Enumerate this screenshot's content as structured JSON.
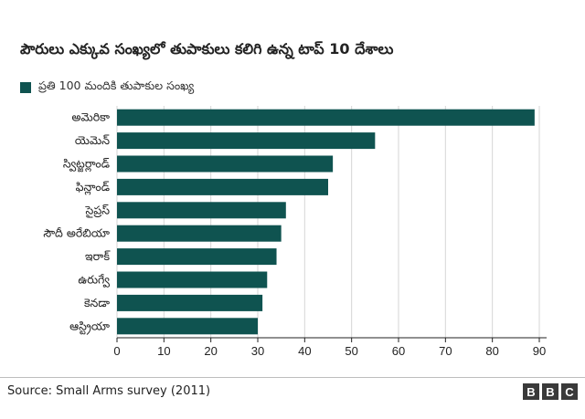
{
  "colors": {
    "bar": "#0f5350",
    "axis": "#222222",
    "grid": "#d6d6d6",
    "text": "#222222"
  },
  "chart_data": {
    "type": "bar",
    "orientation": "horizontal",
    "title": "పౌరులు ఎక్కువ సంఖ్యలో తుపాకులు కలిగి ఉన్న టాప్ 10 దేశాలు",
    "legend": [
      "ప్రతి 100 మందికి తుపాకుల సంఖ్య"
    ],
    "categories": [
      "అమెరికా",
      "యెమెన్",
      "స్విట్జర్లాండ్",
      "ఫిన్లాండ్",
      "సైప్రస్",
      "సౌదీ అరేబియా",
      "ఇరాక్",
      "ఉరుగ్వే",
      "కెనడా",
      "ఆస్ట్రియా"
    ],
    "values": [
      89,
      55,
      46,
      45,
      36,
      35,
      34,
      32,
      31,
      30
    ],
    "xticks": [
      "0",
      "10",
      "20",
      "30",
      "40",
      "50",
      "60",
      "70",
      "80",
      "90"
    ],
    "xlim": [
      0,
      90
    ],
    "grid": true
  },
  "source": "Source: Small Arms survey (2011)",
  "logo": [
    "B",
    "B",
    "C"
  ]
}
